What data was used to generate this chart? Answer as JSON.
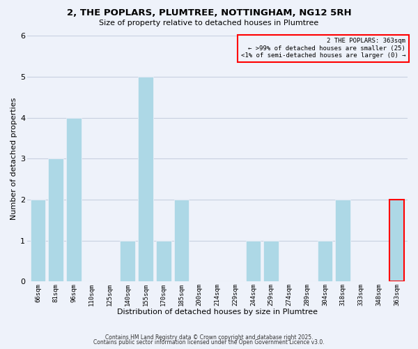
{
  "title": "2, THE POPLARS, PLUMTREE, NOTTINGHAM, NG12 5RH",
  "subtitle": "Size of property relative to detached houses in Plumtree",
  "xlabel": "Distribution of detached houses by size in Plumtree",
  "ylabel": "Number of detached properties",
  "categories": [
    "66sqm",
    "81sqm",
    "96sqm",
    "110sqm",
    "125sqm",
    "140sqm",
    "155sqm",
    "170sqm",
    "185sqm",
    "200sqm",
    "214sqm",
    "229sqm",
    "244sqm",
    "259sqm",
    "274sqm",
    "289sqm",
    "304sqm",
    "318sqm",
    "333sqm",
    "348sqm",
    "363sqm"
  ],
  "values": [
    2,
    3,
    4,
    0,
    0,
    1,
    5,
    1,
    2,
    0,
    0,
    0,
    1,
    1,
    0,
    0,
    1,
    2,
    0,
    0,
    2
  ],
  "bar_color": "#add8e6",
  "highlight_index": 20,
  "highlight_box_color": "#ff0000",
  "ylim": [
    0,
    6
  ],
  "yticks": [
    0,
    1,
    2,
    3,
    4,
    5,
    6
  ],
  "grid_color": "#c8d0e0",
  "bg_color": "#eef2fa",
  "annotation_title": "2 THE POPLARS: 363sqm",
  "annotation_line1": "← >99% of detached houses are smaller (25)",
  "annotation_line2": "<1% of semi-detached houses are larger (0) →",
  "footer1": "Contains HM Land Registry data © Crown copyright and database right 2025.",
  "footer2": "Contains public sector information licensed under the Open Government Licence v3.0."
}
